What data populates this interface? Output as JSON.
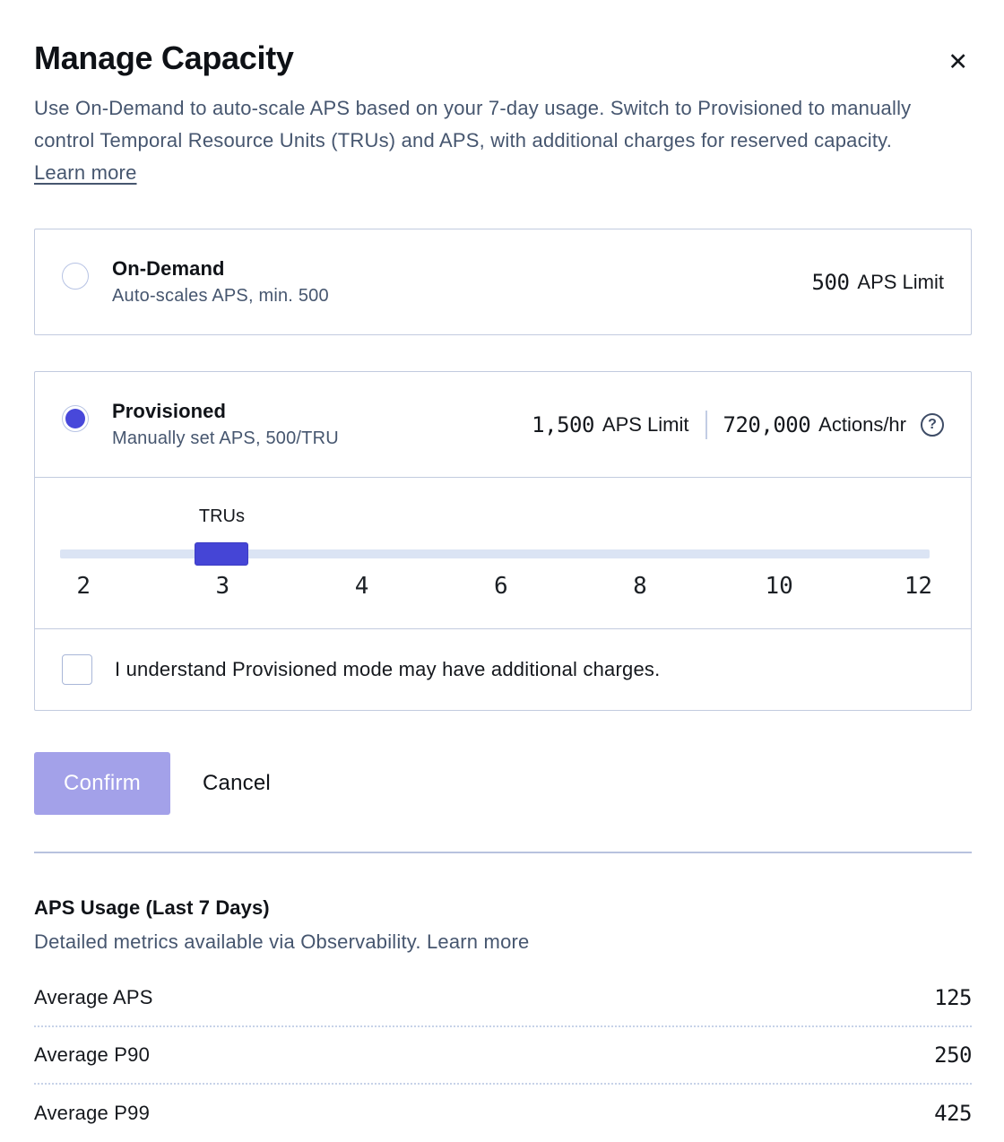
{
  "dialog": {
    "title": "Manage Capacity",
    "close_glyph": "✕",
    "description": "Use On-Demand to auto-scale APS based on your 7-day usage. Switch to Provisioned to manually control Temporal Resource Units (TRUs) and APS, with additional charges for reserved capacity.",
    "learn_more_label": "Learn more"
  },
  "plans": {
    "on_demand": {
      "title": "On-Demand",
      "subtitle": "Auto-scales APS, min. 500",
      "aps_value": "500",
      "aps_label": "APS Limit",
      "selected": false
    },
    "provisioned": {
      "title": "Provisioned",
      "subtitle": "Manually set APS, 500/TRU",
      "aps_value": "1,500",
      "aps_label": "APS Limit",
      "actions_value": "720,000",
      "actions_label": "Actions/hr",
      "help_glyph": "?",
      "selected": true
    }
  },
  "slider": {
    "label": "TRUs",
    "value": 3,
    "ticks": [
      "2",
      "3",
      "4",
      "6",
      "8",
      "10",
      "12"
    ],
    "handle_percent": 18.6
  },
  "checkbox": {
    "label": "I understand Provisioned mode may have additional charges.",
    "checked": false
  },
  "actions": {
    "confirm_label": "Confirm",
    "cancel_label": "Cancel"
  },
  "usage": {
    "title": "APS Usage (Last 7 Days)",
    "subtitle_text": "Detailed metrics available via Observability.",
    "learn_more_label": "Learn more",
    "rows": [
      {
        "label": "Average APS",
        "value": "125"
      },
      {
        "label": "Average P90",
        "value": "250"
      },
      {
        "label": "Average P99",
        "value": "425"
      }
    ]
  },
  "colors": {
    "accent_indigo": "#4848da",
    "confirm_disabled": "#a3a1e9",
    "slate_text": "#46566f",
    "border": "#c2cbdf",
    "track": "#dbe4f4",
    "dotted_separator": "#c7d2e8"
  }
}
